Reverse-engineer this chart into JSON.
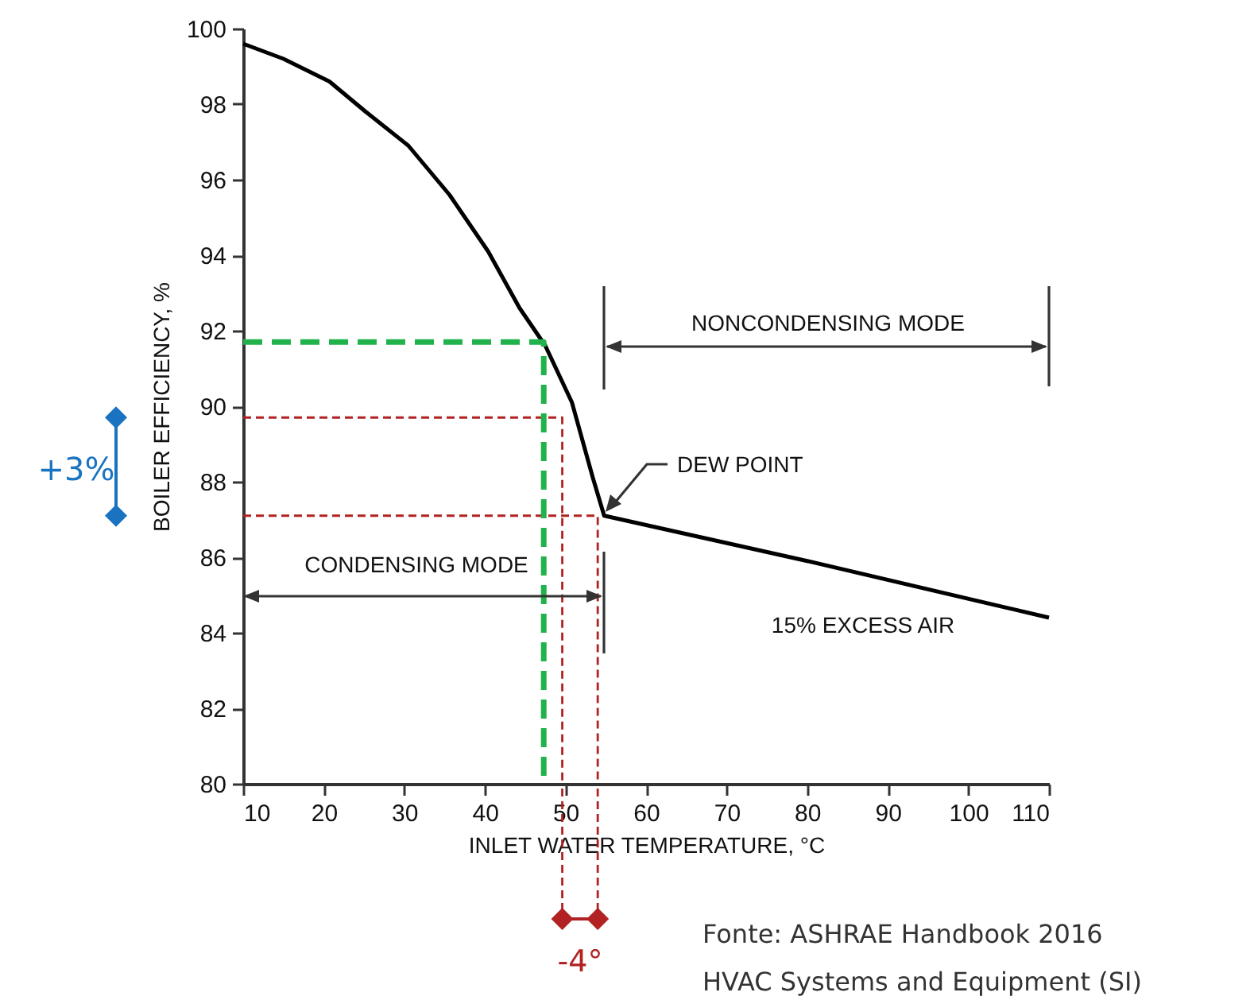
{
  "chart_data": {
    "type": "line",
    "xlabel": "INLET WATER TEMPERATURE, °C",
    "ylabel": "BOILER EFFICIENCY, %",
    "xlim": [
      10,
      110
    ],
    "xticks": [
      10,
      20,
      30,
      40,
      50,
      60,
      70,
      80,
      90,
      100,
      110
    ],
    "ylim": [
      80,
      100
    ],
    "yticks": [
      80,
      82,
      84,
      86,
      88,
      90,
      92,
      94,
      96,
      98,
      100
    ],
    "series": [
      {
        "color": "#000000",
        "line_style": "solid",
        "x": [
          10,
          15,
          20.7,
          25.2,
          30.5,
          35.6,
          40.4,
          44.3,
          47.5,
          50.8,
          53.4,
          54.8,
          80,
          110
        ],
        "values": [
          99.6,
          99.2,
          98.6,
          97.8,
          96.9,
          95.6,
          94.1,
          92.6,
          91.6,
          90.1,
          88.1,
          87.1,
          85.9,
          84.4
        ]
      },
      {
        "color": "#b22222",
        "line_style": "dashed",
        "x": [
          10,
          49.6,
          49.6
        ],
        "values": [
          89.7,
          89.7,
          80
        ]
      },
      {
        "color": "#b22222",
        "line_style": "dashed",
        "x": [
          10,
          54,
          54
        ],
        "values": [
          87.1,
          87.1,
          80
        ]
      },
      {
        "color": "#22b24c",
        "line_style": "dashed",
        "x": [
          10,
          47.3,
          47.3
        ],
        "values": [
          91.7,
          91.7,
          80
        ]
      }
    ],
    "annotations": [
      "CONDENSING MODE",
      "NONCONDENSING MODE",
      "DEW POINT",
      "15% EXCESS AIR",
      "+3%",
      "-4°",
      "Fonte: ASHRAE Handbook 2016",
      "HVAC Systems and Equipment (SI)"
    ]
  }
}
